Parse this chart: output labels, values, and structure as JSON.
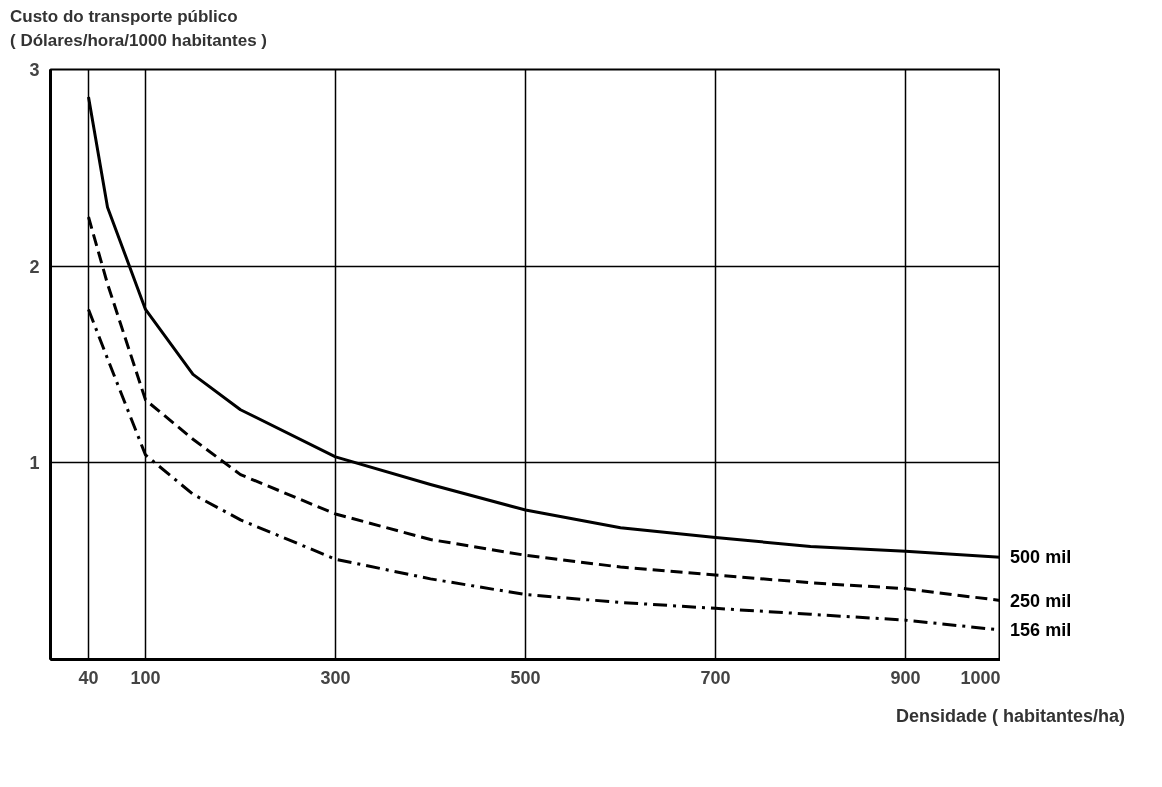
{
  "chart_data": {
    "type": "line",
    "xlabel": "Densidade ( habitantes/ha)",
    "ylabel": "Custo do transporte público\n( Dólares/hora/1000 habitantes )",
    "xlim": [
      0,
      1000
    ],
    "ylim": [
      0,
      3
    ],
    "xticks": [
      40,
      100,
      300,
      500,
      700,
      900,
      1000
    ],
    "yticks": [
      1,
      2,
      3
    ],
    "grid": true,
    "x": [
      40,
      60,
      100,
      150,
      200,
      300,
      400,
      500,
      600,
      700,
      800,
      900,
      1000
    ],
    "series": [
      {
        "name": "500 mil",
        "color": "#000000",
        "line_style": "solid",
        "values": [
          2.86,
          2.3,
          1.78,
          1.45,
          1.27,
          1.03,
          0.89,
          0.76,
          0.67,
          0.62,
          0.575,
          0.55,
          0.52
        ]
      },
      {
        "name": "250 mil",
        "color": "#000000",
        "line_style": "dashed",
        "values": [
          2.25,
          1.91,
          1.32,
          1.12,
          0.94,
          0.74,
          0.61,
          0.53,
          0.47,
          0.43,
          0.39,
          0.36,
          0.3
        ]
      },
      {
        "name": "156 mil",
        "color": "#000000",
        "line_style": "dashdot",
        "values": [
          1.78,
          1.53,
          1.04,
          0.84,
          0.71,
          0.51,
          0.41,
          0.33,
          0.29,
          0.26,
          0.23,
          0.2,
          0.15
        ]
      }
    ]
  }
}
